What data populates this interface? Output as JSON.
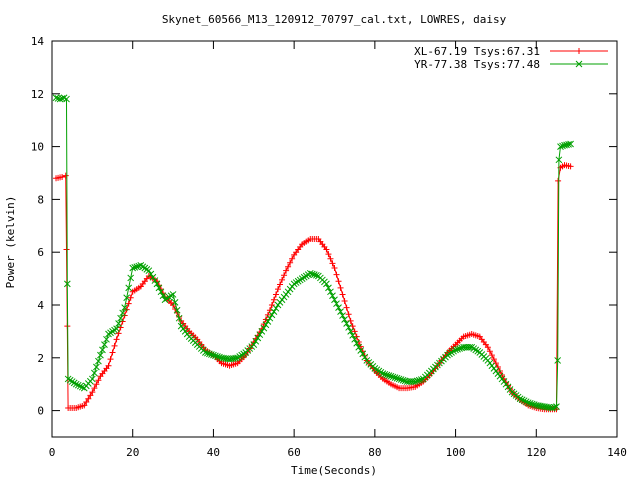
{
  "chart_data": {
    "type": "line",
    "title": "Skynet_60566_M13_120912_70797_cal.txt, LOWRES, daisy",
    "xlabel": "Time(Seconds)",
    "ylabel": "Power (kelvin)",
    "xlim": [
      0,
      140
    ],
    "ylim": [
      -1,
      14
    ],
    "xticks": [
      0,
      20,
      40,
      60,
      80,
      100,
      120,
      140
    ],
    "yticks": [
      0,
      2,
      4,
      6,
      8,
      10,
      12,
      14
    ],
    "grid": false,
    "legend_position": "top-right",
    "series": [
      {
        "name": "XL-67.19 Tsys:67.31",
        "color": "#ff0000",
        "marker": "plus",
        "points": [
          [
            1.0,
            8.8
          ],
          [
            2.5,
            8.85
          ],
          [
            3.4,
            8.9
          ],
          [
            3.6,
            6.1
          ],
          [
            3.8,
            3.2
          ],
          [
            4.0,
            0.1
          ],
          [
            6.0,
            0.1
          ],
          [
            8.0,
            0.2
          ],
          [
            10.0,
            0.7
          ],
          [
            12.0,
            1.3
          ],
          [
            14.0,
            1.7
          ],
          [
            16.0,
            2.7
          ],
          [
            18.0,
            3.6
          ],
          [
            20.0,
            4.5
          ],
          [
            22.0,
            4.7
          ],
          [
            24.0,
            5.1
          ],
          [
            26.0,
            4.9
          ],
          [
            28.0,
            4.3
          ],
          [
            30.0,
            4.0
          ],
          [
            32.0,
            3.4
          ],
          [
            34.0,
            3.0
          ],
          [
            36.0,
            2.7
          ],
          [
            38.0,
            2.3
          ],
          [
            40.0,
            2.1
          ],
          [
            42.0,
            1.8
          ],
          [
            44.0,
            1.7
          ],
          [
            46.0,
            1.8
          ],
          [
            48.0,
            2.1
          ],
          [
            50.0,
            2.6
          ],
          [
            52.0,
            3.1
          ],
          [
            54.0,
            3.8
          ],
          [
            56.0,
            4.6
          ],
          [
            58.0,
            5.3
          ],
          [
            60.0,
            5.9
          ],
          [
            62.0,
            6.3
          ],
          [
            64.0,
            6.5
          ],
          [
            66.0,
            6.5
          ],
          [
            68.0,
            6.1
          ],
          [
            70.0,
            5.4
          ],
          [
            72.0,
            4.4
          ],
          [
            74.0,
            3.4
          ],
          [
            76.0,
            2.6
          ],
          [
            78.0,
            1.9
          ],
          [
            80.0,
            1.5
          ],
          [
            82.0,
            1.2
          ],
          [
            84.0,
            1.0
          ],
          [
            86.0,
            0.85
          ],
          [
            88.0,
            0.85
          ],
          [
            90.0,
            0.9
          ],
          [
            92.0,
            1.1
          ],
          [
            94.0,
            1.4
          ],
          [
            96.0,
            1.8
          ],
          [
            98.0,
            2.2
          ],
          [
            100.0,
            2.5
          ],
          [
            102.0,
            2.8
          ],
          [
            104.0,
            2.9
          ],
          [
            106.0,
            2.8
          ],
          [
            108.0,
            2.4
          ],
          [
            110.0,
            1.8
          ],
          [
            112.0,
            1.2
          ],
          [
            114.0,
            0.7
          ],
          [
            116.0,
            0.4
          ],
          [
            118.0,
            0.2
          ],
          [
            120.0,
            0.1
          ],
          [
            122.0,
            0.05
          ],
          [
            124.0,
            0.05
          ],
          [
            125.0,
            0.05
          ],
          [
            125.4,
            8.7
          ],
          [
            126.0,
            9.2
          ],
          [
            127.0,
            9.3
          ],
          [
            128.5,
            9.25
          ]
        ]
      },
      {
        "name": "YR-77.38 Tsys:77.48",
        "color": "#00a000",
        "marker": "cross",
        "points": [
          [
            1.0,
            11.85
          ],
          [
            2.0,
            11.8
          ],
          [
            3.0,
            11.85
          ],
          [
            3.6,
            11.8
          ],
          [
            3.8,
            4.8
          ],
          [
            4.0,
            1.2
          ],
          [
            6.0,
            1.0
          ],
          [
            8.0,
            0.85
          ],
          [
            10.0,
            1.2
          ],
          [
            12.0,
            2.1
          ],
          [
            14.0,
            2.9
          ],
          [
            16.0,
            3.1
          ],
          [
            18.0,
            3.9
          ],
          [
            20.0,
            5.4
          ],
          [
            22.0,
            5.5
          ],
          [
            24.0,
            5.3
          ],
          [
            26.0,
            4.8
          ],
          [
            28.0,
            4.2
          ],
          [
            30.0,
            4.4
          ],
          [
            32.0,
            3.2
          ],
          [
            34.0,
            2.8
          ],
          [
            36.0,
            2.5
          ],
          [
            38.0,
            2.2
          ],
          [
            40.0,
            2.1
          ],
          [
            42.0,
            2.0
          ],
          [
            44.0,
            1.95
          ],
          [
            46.0,
            2.0
          ],
          [
            48.0,
            2.2
          ],
          [
            50.0,
            2.5
          ],
          [
            52.0,
            3.0
          ],
          [
            54.0,
            3.5
          ],
          [
            56.0,
            4.0
          ],
          [
            58.0,
            4.4
          ],
          [
            60.0,
            4.8
          ],
          [
            62.0,
            5.0
          ],
          [
            64.0,
            5.2
          ],
          [
            66.0,
            5.1
          ],
          [
            68.0,
            4.8
          ],
          [
            70.0,
            4.2
          ],
          [
            72.0,
            3.6
          ],
          [
            74.0,
            3.0
          ],
          [
            76.0,
            2.4
          ],
          [
            78.0,
            1.9
          ],
          [
            80.0,
            1.6
          ],
          [
            82.0,
            1.4
          ],
          [
            84.0,
            1.3
          ],
          [
            86.0,
            1.2
          ],
          [
            88.0,
            1.1
          ],
          [
            90.0,
            1.1
          ],
          [
            92.0,
            1.2
          ],
          [
            94.0,
            1.5
          ],
          [
            96.0,
            1.8
          ],
          [
            98.0,
            2.1
          ],
          [
            100.0,
            2.3
          ],
          [
            102.0,
            2.4
          ],
          [
            104.0,
            2.4
          ],
          [
            106.0,
            2.2
          ],
          [
            108.0,
            1.9
          ],
          [
            110.0,
            1.5
          ],
          [
            112.0,
            1.1
          ],
          [
            114.0,
            0.7
          ],
          [
            116.0,
            0.45
          ],
          [
            118.0,
            0.3
          ],
          [
            120.0,
            0.2
          ],
          [
            122.0,
            0.15
          ],
          [
            124.0,
            0.1
          ],
          [
            125.0,
            0.15
          ],
          [
            125.3,
            1.9
          ],
          [
            125.6,
            9.5
          ],
          [
            126.0,
            10.0
          ],
          [
            127.0,
            10.05
          ],
          [
            128.5,
            10.1
          ]
        ]
      }
    ]
  }
}
